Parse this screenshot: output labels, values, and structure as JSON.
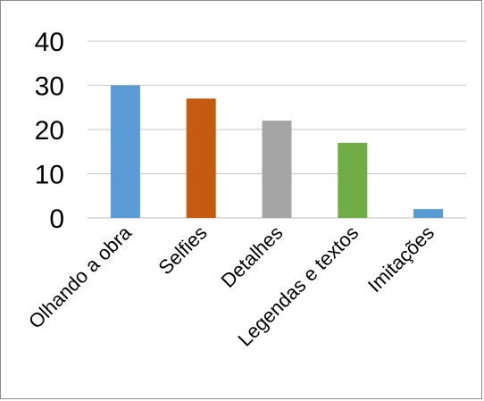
{
  "chart_data": {
    "type": "bar",
    "categories": [
      "Olhando a obra",
      "Selfies",
      "Detalhes",
      "Legendas e textos",
      "Imitações"
    ],
    "values": [
      30,
      27,
      22,
      17,
      2
    ],
    "colors": [
      "#5b9bd5",
      "#c55a11",
      "#a5a5a5",
      "#70ad47",
      "#5b9bd5"
    ],
    "title": "",
    "xlabel": "",
    "ylabel": "",
    "ylim": [
      0,
      40
    ],
    "yticks": [
      0,
      10,
      20,
      30,
      40
    ],
    "grid": true,
    "legend": "none"
  }
}
